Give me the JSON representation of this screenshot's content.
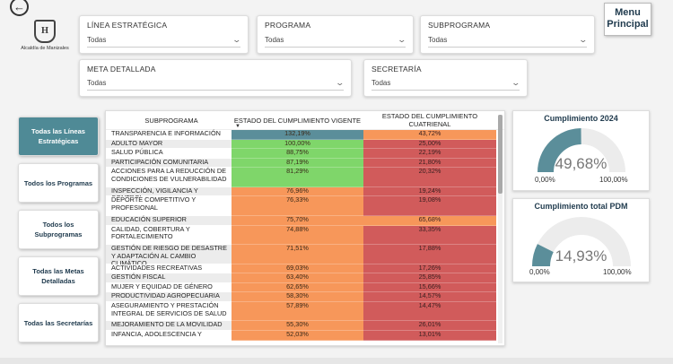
{
  "colors": {
    "primary": "#1f3a4d",
    "active_button": "#4f8a96",
    "gauge_fill": "#5b8e9a",
    "gauge_track": "#ececec",
    "green": "#7fd66a",
    "orange": "#f7975a",
    "red": "#d15b5b",
    "teal_cell": "#5b8e9a"
  },
  "header": {
    "back_icon": "arrow-left-circle-icon",
    "logo_text": "Alcaldía de Manizales",
    "menu_label": "Menu Principal"
  },
  "filters": {
    "linea": {
      "label": "LÍNEA ESTRATÉGICA",
      "value": "Todas"
    },
    "programa": {
      "label": "PROGRAMA",
      "value": "Todas"
    },
    "subprograma": {
      "label": "SUBPROGRAMA",
      "value": "Todas"
    },
    "meta": {
      "label": "META DETALLADA",
      "value": "Todas"
    },
    "secretaria": {
      "label": "SECRETARÍA",
      "value": "Todas"
    }
  },
  "nav": {
    "lineas": "Todas las Líneas Estratégicas",
    "programas": "Todos los Programas",
    "subprogramas": "Todos los Subprogramas",
    "metas": "Todas las Metas Detalladas",
    "secretarias": "Todas las Secretarías"
  },
  "table": {
    "columns": [
      "SUBPROGRAMA",
      "ESTADO DEL CUMPLIMIENTO VIGENTE",
      "ESTADO DEL CUMPLIMIENTO CUATRIENAL"
    ],
    "rows": [
      {
        "name": "TRANSPARENCIA E INFORMACIÓN",
        "vigente": "132,19%",
        "cuatrienal": "43,72%",
        "vc": "teal",
        "cc": "orange",
        "lines": 1
      },
      {
        "name": "ADULTO MAYOR",
        "vigente": "100,00%",
        "cuatrienal": "25,00%",
        "vc": "green",
        "cc": "red",
        "lines": 1
      },
      {
        "name": "SALUD PÚBLICA",
        "vigente": "88,75%",
        "cuatrienal": "22,19%",
        "vc": "green",
        "cc": "red",
        "lines": 1
      },
      {
        "name": "PARTICIPACIÓN COMUNITARIA",
        "vigente": "87,19%",
        "cuatrienal": "21,80%",
        "vc": "green",
        "cc": "red",
        "lines": 1
      },
      {
        "name": "ACCIONES PARA LA REDUCCIÓN DE CONDICIONES DE VULNERABILIDAD",
        "vigente": "81,29%",
        "cuatrienal": "20,32%",
        "vc": "green",
        "cc": "red",
        "lines": 2
      },
      {
        "name": "INSPECCIÓN, VIGILANCIA Y CONTROL",
        "vigente": "76,96%",
        "cuatrienal": "19,24%",
        "vc": "orange",
        "cc": "red",
        "lines": 1
      },
      {
        "name": "DEPORTE COMPETITIVO Y PROFESIONAL",
        "vigente": "76,33%",
        "cuatrienal": "19,08%",
        "vc": "orange",
        "cc": "red",
        "lines": 2
      },
      {
        "name": "EDUCACIÓN SUPERIOR",
        "vigente": "75,70%",
        "cuatrienal": "65,68%",
        "vc": "orange",
        "cc": "orange",
        "lines": 1
      },
      {
        "name": "CALIDAD, COBERTURA Y FORTALECIMIENTO",
        "vigente": "74,88%",
        "cuatrienal": "33,35%",
        "vc": "orange",
        "cc": "red",
        "lines": 2
      },
      {
        "name": "GESTIÓN DE RIESGO DE DESASTRE Y ADAPTACIÓN AL CAMBIO CLIMÁTICO",
        "vigente": "71,51%",
        "cuatrienal": "17,88%",
        "vc": "orange",
        "cc": "red",
        "lines": 2
      },
      {
        "name": "ACTIVIDADES RECREATIVAS",
        "vigente": "69,03%",
        "cuatrienal": "17,26%",
        "vc": "orange",
        "cc": "red",
        "lines": 1
      },
      {
        "name": "GESTIÓN FISCAL",
        "vigente": "63,40%",
        "cuatrienal": "25,85%",
        "vc": "orange",
        "cc": "red",
        "lines": 1
      },
      {
        "name": "MUJER Y EQUIDAD DE GÉNERO",
        "vigente": "62,65%",
        "cuatrienal": "15,66%",
        "vc": "orange",
        "cc": "red",
        "lines": 1
      },
      {
        "name": "PRODUCTIVIDAD AGROPECUARIA",
        "vigente": "58,30%",
        "cuatrienal": "14,57%",
        "vc": "orange",
        "cc": "red",
        "lines": 1
      },
      {
        "name": "ASEGURAMIENTO Y PRESTACIÓN INTEGRAL DE SERVICIOS DE SALUD",
        "vigente": "57,89%",
        "cuatrienal": "14,47%",
        "vc": "orange",
        "cc": "red",
        "lines": 2
      },
      {
        "name": "MEJORAMIENTO DE LA MOVILIDAD",
        "vigente": "55,30%",
        "cuatrienal": "26,01%",
        "vc": "orange",
        "cc": "red",
        "lines": 1
      },
      {
        "name": "INFANCIA, ADOLESCENCIA Y",
        "vigente": "52,03%",
        "cuatrienal": "13,01%",
        "vc": "orange",
        "cc": "red",
        "lines": 1
      }
    ]
  },
  "gauges": [
    {
      "title": "Cumplimiento 2024",
      "value_label": "49,68%",
      "value": 49.68,
      "min": "0,00%",
      "max": "100,00%"
    },
    {
      "title": "Cumplimiento total PDM",
      "value_label": "14,93%",
      "value": 14.93,
      "min": "0,00%",
      "max": "100,00%"
    }
  ]
}
